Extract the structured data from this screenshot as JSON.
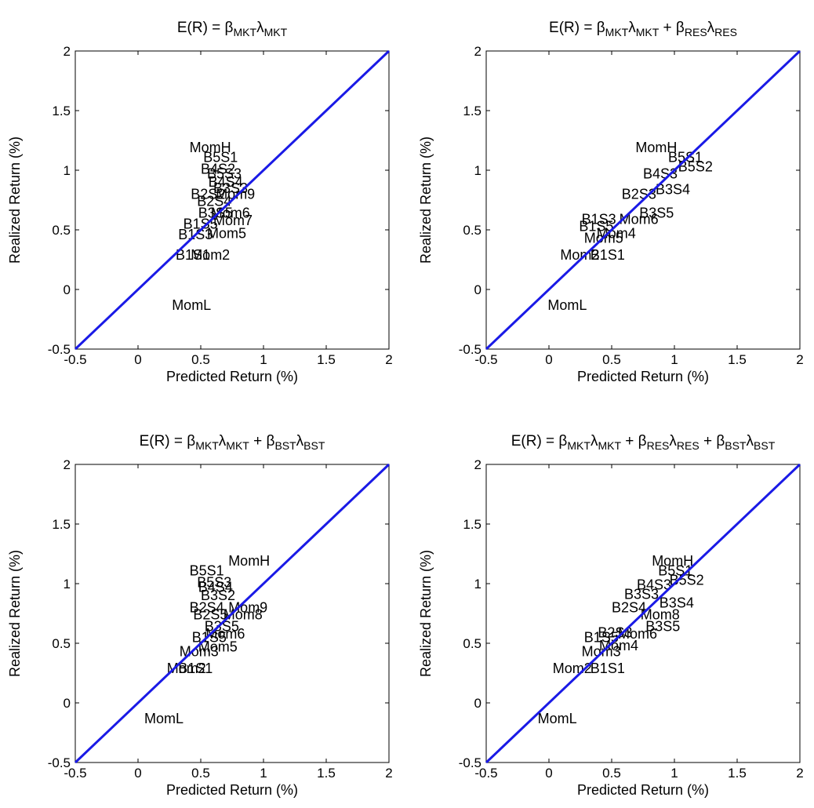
{
  "chart_data": [
    {
      "type": "scatter",
      "title_parts": [
        [
          "E(R) = β",
          ""
        ],
        [
          "MKT",
          "sub"
        ],
        [
          "λ",
          ""
        ],
        [
          "MKT",
          "sub"
        ]
      ],
      "xlabel": "Predicted Return (%)",
      "ylabel": "Realized Return (%)",
      "xlim": [
        -0.5,
        2
      ],
      "ylim": [
        -0.5,
        2
      ],
      "xticks": [
        "-0.5",
        "0",
        "0.5",
        "1",
        "1.5",
        "2"
      ],
      "yticks": [
        "-0.5",
        "0",
        "0.5",
        "1",
        "1.5",
        "2"
      ],
      "reference_line": "y = x",
      "points": [
        {
          "label": "MomH",
          "x": 0.41,
          "y": 1.19
        },
        {
          "label": "B5S1",
          "x": 0.52,
          "y": 1.11
        },
        {
          "label": "B4S2",
          "x": 0.5,
          "y": 1.01
        },
        {
          "label": "B5S3",
          "x": 0.55,
          "y": 0.97
        },
        {
          "label": "B4S4",
          "x": 0.56,
          "y": 0.9
        },
        {
          "label": "B3S3",
          "x": 0.6,
          "y": 0.85
        },
        {
          "label": "Mom9",
          "x": 0.62,
          "y": 0.8
        },
        {
          "label": "B2S2",
          "x": 0.42,
          "y": 0.8
        },
        {
          "label": "B2S4",
          "x": 0.47,
          "y": 0.74
        },
        {
          "label": "B3S5",
          "x": 0.48,
          "y": 0.64
        },
        {
          "label": "Mom6",
          "x": 0.58,
          "y": 0.64
        },
        {
          "label": "Mom7",
          "x": 0.6,
          "y": 0.58
        },
        {
          "label": "B1S5",
          "x": 0.36,
          "y": 0.55
        },
        {
          "label": "Mom5",
          "x": 0.55,
          "y": 0.47
        },
        {
          "label": "B1S3",
          "x": 0.32,
          "y": 0.46
        },
        {
          "label": "B1S1",
          "x": 0.3,
          "y": 0.29
        },
        {
          "label": "Mom2",
          "x": 0.42,
          "y": 0.29
        },
        {
          "label": "MomL",
          "x": 0.27,
          "y": -0.13
        }
      ]
    },
    {
      "type": "scatter",
      "title_parts": [
        [
          "E(R) = β",
          ""
        ],
        [
          "MKT",
          "sub"
        ],
        [
          "λ",
          ""
        ],
        [
          "MKT",
          "sub"
        ],
        [
          " + β",
          ""
        ],
        [
          "RES",
          "sub"
        ],
        [
          "λ",
          ""
        ],
        [
          "RES",
          "sub"
        ]
      ],
      "xlabel": "Predicted Return (%)",
      "ylabel": "Realized Return (%)",
      "xlim": [
        -0.5,
        2
      ],
      "ylim": [
        -0.5,
        2
      ],
      "xticks": [
        "-0.5",
        "0",
        "0.5",
        "1",
        "1.5",
        "2"
      ],
      "yticks": [
        "-0.5",
        "0",
        "0.5",
        "1",
        "1.5",
        "2"
      ],
      "reference_line": "y = x",
      "points": [
        {
          "label": "MomH",
          "x": 0.69,
          "y": 1.19
        },
        {
          "label": "B5S1",
          "x": 0.95,
          "y": 1.11
        },
        {
          "label": "B5S2",
          "x": 1.03,
          "y": 1.03
        },
        {
          "label": "B4S3",
          "x": 0.75,
          "y": 0.97
        },
        {
          "label": "B3S4",
          "x": 0.85,
          "y": 0.84
        },
        {
          "label": "B2S3",
          "x": 0.58,
          "y": 0.8
        },
        {
          "label": "B3S5",
          "x": 0.72,
          "y": 0.64
        },
        {
          "label": "Mom6",
          "x": 0.56,
          "y": 0.59
        },
        {
          "label": "B1S3",
          "x": 0.26,
          "y": 0.59
        },
        {
          "label": "B1S5",
          "x": 0.24,
          "y": 0.53
        },
        {
          "label": "Mom4",
          "x": 0.38,
          "y": 0.47
        },
        {
          "label": "Mom5",
          "x": 0.28,
          "y": 0.43
        },
        {
          "label": "Mom2",
          "x": 0.09,
          "y": 0.29
        },
        {
          "label": "B1S1",
          "x": 0.33,
          "y": 0.29
        },
        {
          "label": "MomL",
          "x": -0.01,
          "y": -0.13
        }
      ]
    },
    {
      "type": "scatter",
      "title_parts": [
        [
          "E(R) = β",
          ""
        ],
        [
          "MKT",
          "sub"
        ],
        [
          "λ",
          ""
        ],
        [
          "MKT",
          "sub"
        ],
        [
          " + β",
          ""
        ],
        [
          "BST",
          "sub"
        ],
        [
          "λ",
          ""
        ],
        [
          "BST",
          "sub"
        ]
      ],
      "xlabel": "Predicted Return (%)",
      "ylabel": "Realized Return (%)",
      "xlim": [
        -0.5,
        2
      ],
      "ylim": [
        -0.5,
        2
      ],
      "xticks": [
        "-0.5",
        "0",
        "0.5",
        "1",
        "1.5",
        "2"
      ],
      "yticks": [
        "-0.5",
        "0",
        "0.5",
        "1",
        "1.5",
        "2"
      ],
      "reference_line": "y = x",
      "points": [
        {
          "label": "MomH",
          "x": 0.72,
          "y": 1.19
        },
        {
          "label": "B5S1",
          "x": 0.41,
          "y": 1.11
        },
        {
          "label": "B5S3",
          "x": 0.47,
          "y": 1.01
        },
        {
          "label": "B4S4",
          "x": 0.48,
          "y": 0.97
        },
        {
          "label": "B3S2",
          "x": 0.5,
          "y": 0.9
        },
        {
          "label": "Mom9",
          "x": 0.72,
          "y": 0.8
        },
        {
          "label": "B2S4",
          "x": 0.41,
          "y": 0.8
        },
        {
          "label": "Mom8",
          "x": 0.68,
          "y": 0.74
        },
        {
          "label": "B2S5",
          "x": 0.44,
          "y": 0.74
        },
        {
          "label": "B3S5",
          "x": 0.53,
          "y": 0.64
        },
        {
          "label": "Mom6",
          "x": 0.54,
          "y": 0.58
        },
        {
          "label": "B1S5",
          "x": 0.43,
          "y": 0.55
        },
        {
          "label": "Mom5",
          "x": 0.48,
          "y": 0.47
        },
        {
          "label": "Mom3",
          "x": 0.33,
          "y": 0.43
        },
        {
          "label": "Mom2",
          "x": 0.23,
          "y": 0.29
        },
        {
          "label": "B1S1",
          "x": 0.32,
          "y": 0.29
        },
        {
          "label": "MomL",
          "x": 0.05,
          "y": -0.13
        }
      ]
    },
    {
      "type": "scatter",
      "title_parts": [
        [
          "E(R) = β",
          ""
        ],
        [
          "MKT",
          "sub"
        ],
        [
          "λ",
          ""
        ],
        [
          "MKT",
          "sub"
        ],
        [
          " + β",
          ""
        ],
        [
          "RES",
          "sub"
        ],
        [
          "λ",
          ""
        ],
        [
          "RES",
          "sub"
        ],
        [
          " + β",
          ""
        ],
        [
          "BST",
          "sub"
        ],
        [
          "λ",
          ""
        ],
        [
          "BST",
          "sub"
        ]
      ],
      "xlabel": "Predicted Return (%)",
      "ylabel": "Realized Return (%)",
      "xlim": [
        -0.5,
        2
      ],
      "ylim": [
        -0.5,
        2
      ],
      "xticks": [
        "-0.5",
        "0",
        "0.5",
        "1",
        "1.5",
        "2"
      ],
      "yticks": [
        "-0.5",
        "0",
        "0.5",
        "1",
        "1.5",
        "2"
      ],
      "reference_line": "y = x",
      "points": [
        {
          "label": "MomH",
          "x": 0.82,
          "y": 1.19
        },
        {
          "label": "B5S1",
          "x": 0.87,
          "y": 1.11
        },
        {
          "label": "B5S2",
          "x": 0.96,
          "y": 1.03
        },
        {
          "label": "B4S3",
          "x": 0.7,
          "y": 0.99
        },
        {
          "label": "B3S3",
          "x": 0.6,
          "y": 0.91
        },
        {
          "label": "B3S4",
          "x": 0.88,
          "y": 0.84
        },
        {
          "label": "Mom8",
          "x": 0.73,
          "y": 0.74
        },
        {
          "label": "B2S4",
          "x": 0.5,
          "y": 0.8
        },
        {
          "label": "B3S5",
          "x": 0.77,
          "y": 0.64
        },
        {
          "label": "Mom6",
          "x": 0.55,
          "y": 0.58
        },
        {
          "label": "B2S3",
          "x": 0.39,
          "y": 0.59
        },
        {
          "label": "B1S5",
          "x": 0.28,
          "y": 0.55
        },
        {
          "label": "Mom4",
          "x": 0.4,
          "y": 0.48
        },
        {
          "label": "Mom3",
          "x": 0.26,
          "y": 0.43
        },
        {
          "label": "Mom2",
          "x": 0.03,
          "y": 0.29
        },
        {
          "label": "B1S1",
          "x": 0.33,
          "y": 0.29
        },
        {
          "label": "MomL",
          "x": -0.09,
          "y": -0.13
        }
      ]
    }
  ]
}
